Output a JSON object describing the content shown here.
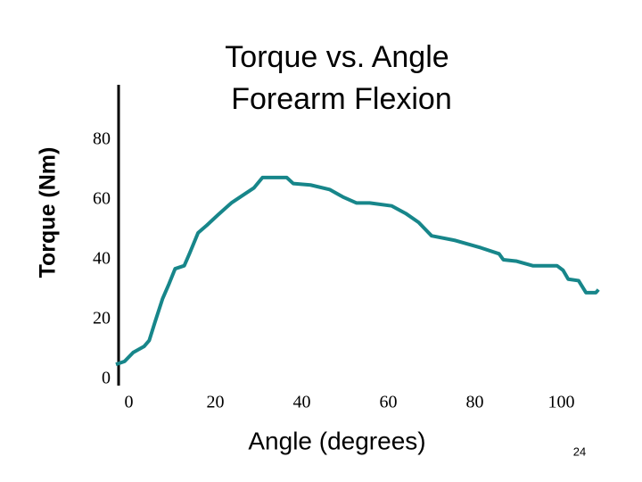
{
  "chart_data": {
    "type": "line",
    "title": [
      "Torque vs. Angle",
      "Forearm Flexion"
    ],
    "x_label": "Angle (degrees)",
    "y_label": "Torque (Nm)",
    "x": [
      -3,
      -1,
      1,
      3.5,
      4.7,
      6,
      7.8,
      9.3,
      10.7,
      12.8,
      14,
      16,
      18,
      20.6,
      23.7,
      26.8,
      28.9,
      30.9,
      36.5,
      38,
      42,
      46.4,
      49.5,
      52.6,
      55.7,
      60.8,
      64,
      67,
      70,
      75.3,
      81.4,
      85.6,
      86.6,
      89.7,
      93.4,
      99,
      100.4,
      101.6,
      104,
      105.7,
      108,
      108.6
    ],
    "series": [
      {
        "name": "Torque",
        "color": "#17868a",
        "values": [
          5,
          6,
          9,
          11,
          13,
          19,
          27,
          32,
          37,
          38,
          42,
          49,
          51.5,
          55,
          59,
          62,
          64,
          67.5,
          67.5,
          65.5,
          65,
          63.5,
          61,
          59,
          59,
          58,
          55.5,
          52.5,
          48,
          46.5,
          44,
          42,
          40,
          39.5,
          38,
          38,
          36.5,
          33.5,
          33,
          29,
          29,
          30
        ]
      }
    ],
    "xlim": [
      -3,
      110
    ],
    "ylim": [
      0,
      100
    ],
    "xticks": [
      0,
      20,
      40,
      60,
      80,
      100
    ],
    "yticks": [
      0,
      20,
      40,
      60,
      80
    ],
    "grid": false
  },
  "slide_number": "24"
}
